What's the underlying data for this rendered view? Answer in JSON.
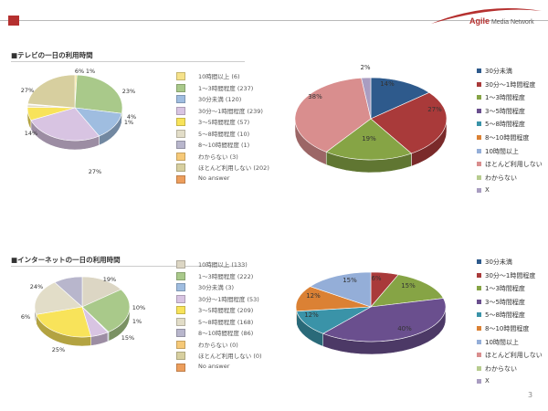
{
  "header": {
    "logo_prefix": "Agile",
    "logo_suffix": " Media Network",
    "brand_color": "#b5302f"
  },
  "page_number": "3",
  "sections": [
    {
      "title": "■テレビの一日の利用時間"
    },
    {
      "title": "■インターネットの一日の利用時間"
    }
  ],
  "chart_data": [
    {
      "type": "pie",
      "title": "",
      "slices": [
        {
          "label": "10時間以上 (6)",
          "value": 6,
          "color": "#f6e28a"
        },
        {
          "label": "1～3時間程度 (237)",
          "value": 237,
          "color": "#a9c98a"
        },
        {
          "label": "30分未満 (120)",
          "value": 120,
          "color": "#9fbde0"
        },
        {
          "label": "30分～1時間程度 (239)",
          "value": 239,
          "color": "#d8c4e2"
        },
        {
          "label": "3～5時間程度 (57)",
          "value": 57,
          "color": "#f8e35a"
        },
        {
          "label": "5～8時間程度 (10)",
          "value": 10,
          "color": "#e2ddc8"
        },
        {
          "label": "8～10時間程度 (1)",
          "value": 1,
          "color": "#b8b6cc"
        },
        {
          "label": "わからない (3)",
          "value": 3,
          "color": "#f6c978"
        },
        {
          "label": "ほとんど利用しない (202)",
          "value": 202,
          "color": "#d7cf9f"
        },
        {
          "label": "No answer",
          "value": 0,
          "color": "#ed9e5c"
        }
      ],
      "data_labels": [
        "6%",
        "1%",
        "23%",
        "4%",
        "1%",
        "27%",
        "14%",
        "27%"
      ]
    },
    {
      "type": "pie",
      "title": "",
      "slices": [
        {
          "label": "30分未満",
          "value": 14,
          "color": "#2e5a8c"
        },
        {
          "label": "30分～1時間程度",
          "value": 27,
          "color": "#a93a3a"
        },
        {
          "label": "1～3時間程度",
          "value": 19,
          "color": "#86a445"
        },
        {
          "label": "3～5時間程度",
          "value": 0,
          "color": "#6a4f8e"
        },
        {
          "label": "5～8時間程度",
          "value": 0,
          "color": "#3a93a8"
        },
        {
          "label": "8～10時間程度",
          "value": 0,
          "color": "#db8134"
        },
        {
          "label": "10時間以上",
          "value": 0,
          "color": "#94aed8"
        },
        {
          "label": "ほとんど利用しない",
          "value": 38,
          "color": "#d98e8e"
        },
        {
          "label": "わからない",
          "value": 0,
          "color": "#b7cc8f"
        },
        {
          "label": "X",
          "value": 2,
          "color": "#a99dc1"
        }
      ],
      "data_labels": [
        "2%",
        "14%",
        "27%",
        "19%",
        "38%"
      ]
    },
    {
      "type": "pie",
      "title": "",
      "slices": [
        {
          "label": "10時間以上 (133)",
          "value": 133,
          "color": "#dcd6c4"
        },
        {
          "label": "1～3時間程度 (222)",
          "value": 222,
          "color": "#a9c98a"
        },
        {
          "label": "30分未満 (3)",
          "value": 3,
          "color": "#9fbde0"
        },
        {
          "label": "30分～1時間程度 (53)",
          "value": 53,
          "color": "#d8c4e2"
        },
        {
          "label": "3～5時間程度 (209)",
          "value": 209,
          "color": "#f8e35a"
        },
        {
          "label": "5～8時間程度 (168)",
          "value": 168,
          "color": "#e2ddc8"
        },
        {
          "label": "8～10時間程度 (86)",
          "value": 86,
          "color": "#b8b6cc"
        },
        {
          "label": "わからない (0)",
          "value": 0,
          "color": "#f6c978"
        },
        {
          "label": "ほとんど利用しない (0)",
          "value": 0,
          "color": "#d7cf9f"
        },
        {
          "label": "No answer",
          "value": 0,
          "color": "#ed9e5c"
        }
      ],
      "data_labels": [
        "19%",
        "10%",
        "1%",
        "15%",
        "25%",
        "6%",
        "24%"
      ]
    },
    {
      "type": "pie",
      "title": "",
      "slices": [
        {
          "label": "30分未満",
          "value": 0,
          "color": "#2e5a8c"
        },
        {
          "label": "30分～1時間程度",
          "value": 6,
          "color": "#a93a3a"
        },
        {
          "label": "1～3時間程度",
          "value": 15,
          "color": "#86a445"
        },
        {
          "label": "3～5時間程度",
          "value": 40,
          "color": "#6a4f8e"
        },
        {
          "label": "5～8時間程度",
          "value": 12,
          "color": "#3a93a8"
        },
        {
          "label": "8～10時間程度",
          "value": 12,
          "color": "#db8134"
        },
        {
          "label": "10時間以上",
          "value": 15,
          "color": "#94aed8"
        },
        {
          "label": "ほとんど利用しない",
          "value": 0,
          "color": "#d98e8e"
        },
        {
          "label": "わからない",
          "value": 0,
          "color": "#b7cc8f"
        },
        {
          "label": "X",
          "value": 0,
          "color": "#a99dc1"
        }
      ],
      "data_labels": [
        "6%",
        "15%",
        "40%",
        "12%",
        "12%",
        "15%"
      ]
    }
  ]
}
